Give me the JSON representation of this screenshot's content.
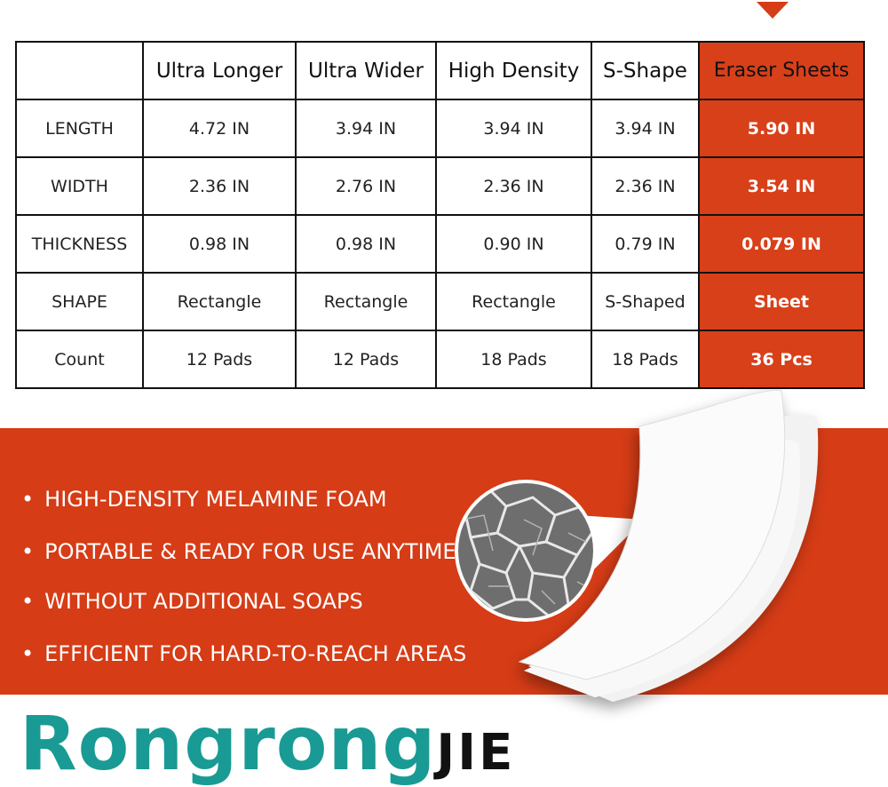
{
  "table": {
    "header": [
      "Ultra Longer",
      "Ultra Wider",
      "High Density",
      "S-Shape",
      "Eraser Sheets"
    ],
    "rows": [
      [
        "LENGTH",
        "4.72 IN",
        "3.94 IN",
        "3.94 IN",
        "3.94 IN",
        "5.90 IN"
      ],
      [
        "WIDTH",
        "2.36 IN",
        "2.76 IN",
        "2.36 IN",
        "2.36 IN",
        "3.54 IN"
      ],
      [
        "THICKNESS",
        "0.98 IN",
        "0.98 IN",
        "0.90 IN",
        "0.79 IN",
        "0.079 IN"
      ],
      [
        "SHAPE",
        "Rectangle",
        "Rectangle",
        "Rectangle",
        "S-Shaped",
        "Sheet"
      ],
      [
        "Count",
        "12 Pads",
        "12 Pads",
        "18 Pads",
        "18 Pads",
        "36 Pcs"
      ]
    ]
  },
  "features": [
    "HIGH-DENSITY MELAMINE FOAM",
    "PORTABLE & READY FOR USE ANYTIME",
    "WITHOUT ADDITIONAL SOAPS",
    "EFFICIENT FOR HARD-TO-REACH AREAS"
  ],
  "brand": {
    "name": "Rongrong",
    "suffix": "JIE"
  }
}
